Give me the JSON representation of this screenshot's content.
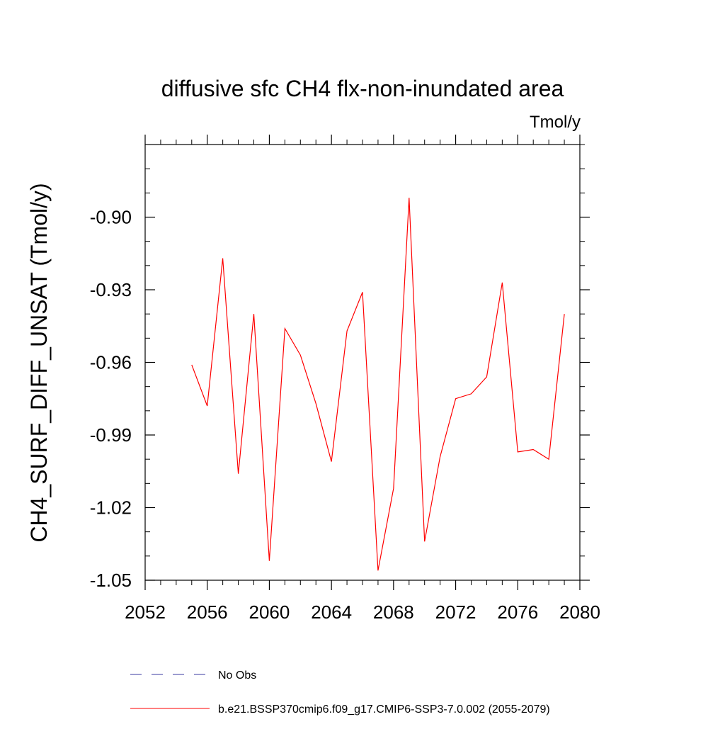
{
  "chart_data": {
    "type": "line",
    "title": "diffusive sfc CH4 flx-non-inundated area",
    "units_label": "Tmol/y",
    "ylabel": "CH4_SURF_DIFF_UNSAT  (Tmol/y)",
    "xlabel": "",
    "xlim": [
      2052,
      2080
    ],
    "ylim": [
      -1.05,
      -0.87
    ],
    "xticks": [
      2052,
      2056,
      2060,
      2064,
      2068,
      2072,
      2076,
      2080
    ],
    "xtick_labels": [
      "2052",
      "2056",
      "2060",
      "2064",
      "2068",
      "2072",
      "2076",
      "2080"
    ],
    "yticks": [
      -1.05,
      -1.02,
      -0.99,
      -0.96,
      -0.93,
      -0.9
    ],
    "ytick_labels": [
      "-1.05",
      "-1.02",
      "-0.99",
      "-0.96",
      "-0.93",
      "-0.90"
    ],
    "y_minor_step": 0.01,
    "x_minor_step": 1,
    "grid": false,
    "legend_position": "bottom",
    "series": [
      {
        "name": "No Obs",
        "color": "#3a3aa0",
        "dash": "dashed",
        "x": [],
        "values": []
      },
      {
        "name": "b.e21.BSSP370cmip6.f09_g17.CMIP6-SSP3-7.0.002 (2055-2079)",
        "color": "#ff0000",
        "dash": "solid",
        "x": [
          2055,
          2056,
          2057,
          2058,
          2059,
          2060,
          2061,
          2062,
          2063,
          2064,
          2065,
          2066,
          2067,
          2068,
          2069,
          2070,
          2071,
          2072,
          2073,
          2074,
          2075,
          2076,
          2077,
          2078,
          2079
        ],
        "values": [
          -0.961,
          -0.978,
          -0.917,
          -1.006,
          -0.94,
          -1.042,
          -0.946,
          -0.957,
          -0.977,
          -1.001,
          -0.947,
          -0.931,
          -1.046,
          -1.012,
          -0.892,
          -1.034,
          -0.999,
          -0.975,
          -0.973,
          -0.966,
          -0.927,
          -0.997,
          -0.996,
          -1.0,
          -0.94
        ]
      }
    ]
  }
}
